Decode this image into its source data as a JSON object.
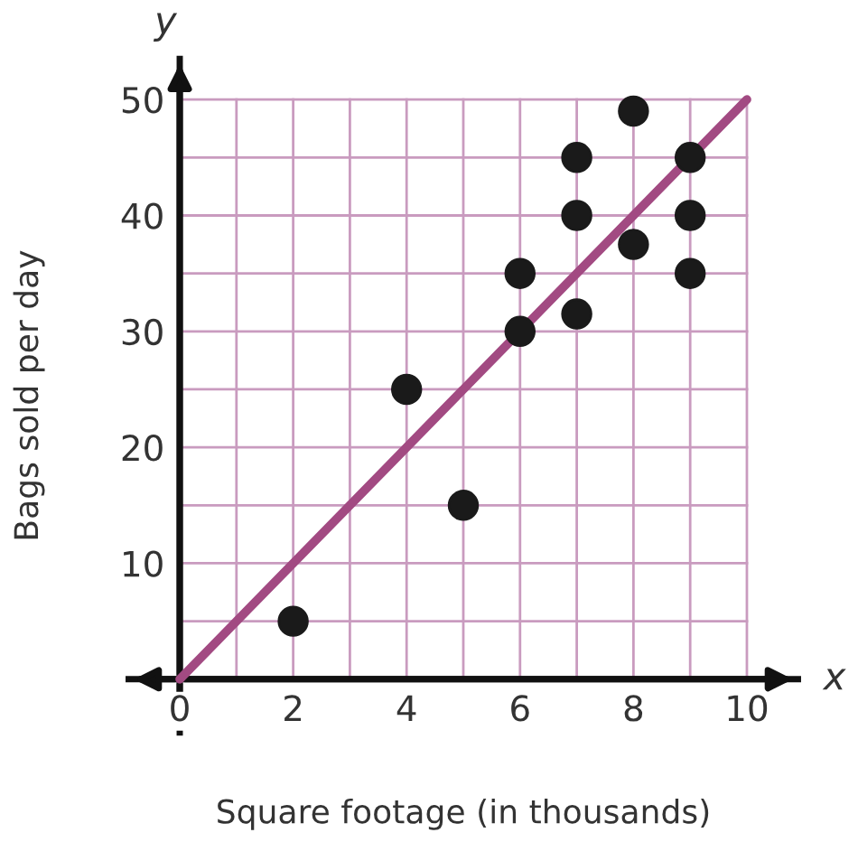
{
  "chart_data": {
    "type": "scatter",
    "xlabel": "Square footage (in thousands)",
    "ylabel": "Bags sold per day",
    "annotations": [
      "x",
      "y"
    ],
    "xlim": [
      -0.9,
      10.9
    ],
    "ylim": [
      -4.6,
      53.5
    ],
    "xticks": [
      0,
      2,
      4,
      6,
      8,
      10
    ],
    "yticks": [
      10,
      20,
      30,
      40,
      50
    ],
    "grid": true,
    "marker": "circle",
    "series": [
      {
        "type": "scatter",
        "color": "#1a1a1a",
        "x": [
          2,
          4,
          5,
          6,
          6,
          7,
          7,
          7,
          8,
          8,
          9,
          9,
          9
        ],
        "values": [
          5,
          25,
          15,
          35,
          30,
          45,
          40,
          31.5,
          49,
          37.5,
          45,
          40,
          35
        ]
      },
      {
        "type": "line",
        "marker": "none",
        "color": "#a24a82",
        "x": [
          0,
          10
        ],
        "values": [
          0,
          50
        ]
      }
    ]
  }
}
